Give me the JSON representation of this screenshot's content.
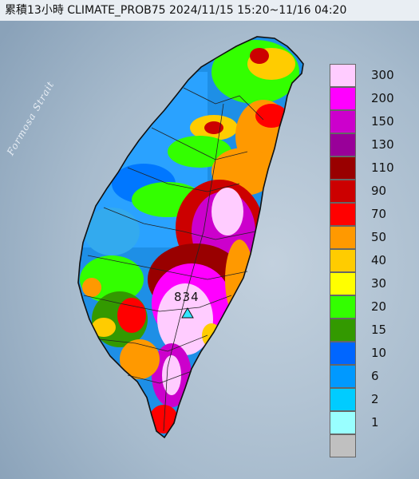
{
  "header": {
    "title": "累積13小時 CLIMATE_PROB75 2024/11/15 15:20~11/16 04:20"
  },
  "map": {
    "strait_label": "Formosa Strait",
    "peak_value": "834",
    "colors": {
      "sea": "#9fb3c8",
      "ocean_light": "#b8c8d8"
    }
  },
  "legend": {
    "items": [
      {
        "label": "300",
        "color": "#ffccff"
      },
      {
        "label": "200",
        "color": "#ff00ff"
      },
      {
        "label": "150",
        "color": "#cc00cc"
      },
      {
        "label": "130",
        "color": "#990099"
      },
      {
        "label": "110",
        "color": "#990000"
      },
      {
        "label": "90",
        "color": "#cc0000"
      },
      {
        "label": "70",
        "color": "#ff0000"
      },
      {
        "label": "50",
        "color": "#ff9900"
      },
      {
        "label": "40",
        "color": "#ffcc00"
      },
      {
        "label": "30",
        "color": "#ffff00"
      },
      {
        "label": "20",
        "color": "#33ff00"
      },
      {
        "label": "15",
        "color": "#339900"
      },
      {
        "label": "10",
        "color": "#0066ff"
      },
      {
        "label": "6",
        "color": "#0099ff"
      },
      {
        "label": "2",
        "color": "#00ccff"
      },
      {
        "label": "1",
        "color": "#99ffff"
      },
      {
        "label": "",
        "color": "#c0c0c0"
      }
    ]
  }
}
